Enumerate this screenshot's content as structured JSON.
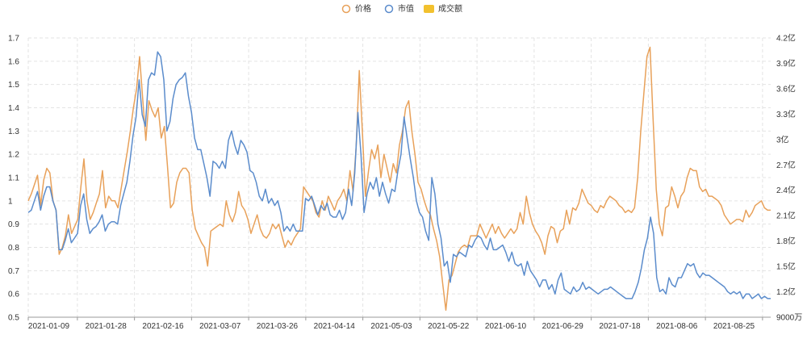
{
  "chart_data": {
    "type": "line",
    "title": "",
    "legend": [
      {
        "name": "价格",
        "color": "#e8a15a",
        "icon": "circle-outline"
      },
      {
        "name": "市值",
        "color": "#5b8ccc",
        "icon": "circle-outline"
      },
      {
        "name": "成交额",
        "color": "#f2c12e",
        "icon": "filled-rect"
      }
    ],
    "legend_position": "top-center",
    "x_labels": [
      "2021-01-09",
      "2021-01-28",
      "2021-02-16",
      "2021-03-07",
      "2021-03-26",
      "2021-04-14",
      "2021-05-03",
      "2021-05-22",
      "2021-06-10",
      "2021-06-29",
      "2021-07-18",
      "2021-08-06",
      "2021-08-25"
    ],
    "y_left": {
      "range": [
        0.5,
        1.7
      ],
      "ticks": [
        0.5,
        0.6,
        0.7,
        0.8,
        0.9,
        1,
        1.1,
        1.2,
        1.3,
        1.4,
        1.5,
        1.6,
        1.7
      ],
      "tick_labels": [
        "0.5",
        "0.6",
        "0.7",
        "0.8",
        "0.9",
        "1",
        "1.1",
        "1.2",
        "1.3",
        "1.4",
        "1.5",
        "1.6",
        "1.7"
      ]
    },
    "y_right": {
      "range": [
        0.9,
        4.2
      ],
      "ticks": [
        0.9,
        1.2,
        1.5,
        1.8,
        2.1,
        2.4,
        2.7,
        3.0,
        3.3,
        3.6,
        3.9,
        4.2
      ],
      "tick_labels": [
        "9000万",
        "1.2亿",
        "1.5亿",
        "1.8亿",
        "2.1亿",
        "2.4亿",
        "2.7亿",
        "3亿",
        "3.3亿",
        "3.6亿",
        "3.9亿",
        "4.2亿"
      ],
      "unit": "亿"
    },
    "grid": true,
    "series": [
      {
        "name": "价格",
        "axis": "left",
        "color": "#e8a15a",
        "values": [
          1.0,
          1.03,
          1.07,
          1.11,
          0.98,
          1.09,
          1.14,
          1.12,
          1.0,
          0.96,
          0.77,
          0.8,
          0.85,
          0.94,
          0.86,
          0.89,
          0.92,
          1.06,
          1.18,
          1.0,
          0.92,
          0.95,
          0.99,
          1.03,
          1.13,
          0.97,
          1.02,
          1.0,
          1.0,
          0.97,
          1.05,
          1.13,
          1.21,
          1.3,
          1.4,
          1.48,
          1.62,
          1.44,
          1.26,
          1.43,
          1.39,
          1.36,
          1.4,
          1.27,
          1.32,
          1.15,
          0.97,
          0.99,
          1.08,
          1.12,
          1.14,
          1.14,
          1.12,
          0.96,
          0.88,
          0.85,
          0.82,
          0.8,
          0.72,
          0.87,
          0.88,
          0.89,
          0.9,
          0.89,
          1.0,
          0.94,
          0.91,
          0.95,
          1.04,
          0.98,
          0.96,
          0.92,
          0.86,
          0.9,
          0.94,
          0.88,
          0.85,
          0.84,
          0.86,
          0.9,
          0.88,
          0.9,
          0.85,
          0.8,
          0.83,
          0.81,
          0.84,
          0.86,
          0.88,
          1.06,
          1.04,
          1.02,
          1.0,
          0.95,
          0.93,
          1.0,
          0.96,
          1.02,
          0.99,
          0.96,
          1.0,
          1.02,
          1.05,
          1.0,
          1.13,
          1.04,
          1.23,
          1.56,
          1.3,
          1.02,
          1.13,
          1.22,
          1.18,
          1.24,
          1.1,
          1.2,
          1.14,
          1.08,
          1.16,
          1.12,
          1.24,
          1.3,
          1.4,
          1.43,
          1.3,
          1.2,
          1.08,
          1.05,
          1.0,
          0.96,
          0.94,
          0.88,
          0.83,
          0.76,
          0.64,
          0.53,
          0.66,
          0.68,
          0.73,
          0.78,
          0.8,
          0.81,
          0.8,
          0.85,
          0.85,
          0.85,
          0.9,
          0.87,
          0.84,
          0.87,
          0.9,
          0.86,
          0.89,
          0.86,
          0.84,
          0.86,
          0.88,
          0.86,
          0.88,
          0.95,
          0.9,
          1.02,
          0.95,
          0.9,
          0.87,
          0.85,
          0.82,
          0.77,
          0.85,
          0.89,
          0.88,
          0.82,
          0.87,
          0.88,
          0.96,
          0.9,
          0.97,
          0.96,
          0.99,
          1.05,
          1.02,
          0.99,
          0.98,
          0.96,
          0.95,
          0.98,
          0.97,
          1.0,
          1.02,
          1.01,
          1.0,
          0.98,
          0.97,
          0.95,
          0.96,
          0.95,
          0.97,
          1.1,
          1.3,
          1.46,
          1.62,
          1.66,
          1.35,
          1.05,
          0.9,
          0.85,
          0.97,
          0.98,
          1.06,
          1.02,
          0.97,
          1.02,
          1.04,
          1.1,
          1.14,
          1.13,
          1.13,
          1.06,
          1.04,
          1.05,
          1.02,
          1.02,
          1.01,
          1.0,
          0.98,
          0.94,
          0.92,
          0.9,
          0.91,
          0.92,
          0.92,
          0.91,
          0.96,
          0.93,
          0.95,
          0.98,
          0.99,
          1.0,
          0.97,
          0.96,
          0.96
        ]
      },
      {
        "name": "市值",
        "axis": "left",
        "color": "#5b8ccc",
        "values": [
          0.95,
          0.96,
          1.0,
          1.04,
          0.96,
          1.02,
          1.06,
          1.06,
          1.0,
          0.96,
          0.79,
          0.79,
          0.83,
          0.88,
          0.82,
          0.84,
          0.86,
          0.98,
          1.03,
          0.92,
          0.86,
          0.88,
          0.89,
          0.91,
          0.94,
          0.87,
          0.9,
          0.91,
          0.91,
          0.9,
          0.98,
          1.03,
          1.08,
          1.17,
          1.28,
          1.36,
          1.52,
          1.37,
          1.32,
          1.52,
          1.55,
          1.54,
          1.64,
          1.62,
          1.52,
          1.3,
          1.34,
          1.44,
          1.5,
          1.52,
          1.53,
          1.55,
          1.45,
          1.38,
          1.27,
          1.22,
          1.22,
          1.16,
          1.1,
          1.02,
          1.17,
          1.16,
          1.14,
          1.17,
          1.14,
          1.26,
          1.3,
          1.24,
          1.2,
          1.26,
          1.24,
          1.21,
          1.13,
          1.12,
          1.08,
          1.02,
          1.0,
          1.05,
          0.99,
          1.01,
          0.98,
          1.0,
          0.95,
          0.87,
          0.89,
          0.87,
          0.9,
          0.87,
          0.87,
          0.87,
          1.01,
          1.0,
          1.02,
          0.98,
          0.94,
          0.98,
          0.96,
          0.99,
          0.94,
          0.93,
          0.93,
          0.96,
          0.92,
          0.95,
          1.05,
          0.98,
          1.12,
          1.38,
          1.2,
          0.95,
          1.03,
          1.08,
          1.05,
          1.1,
          1.02,
          1.08,
          1.03,
          0.99,
          1.05,
          1.04,
          1.13,
          1.2,
          1.36,
          1.27,
          1.18,
          1.1,
          1.0,
          0.95,
          0.93,
          0.87,
          0.83,
          1.1,
          1.03,
          0.9,
          0.84,
          0.72,
          0.74,
          0.65,
          0.77,
          0.76,
          0.78,
          0.77,
          0.76,
          0.81,
          0.8,
          0.83,
          0.85,
          0.84,
          0.81,
          0.79,
          0.84,
          0.79,
          0.79,
          0.8,
          0.81,
          0.78,
          0.74,
          0.78,
          0.73,
          0.72,
          0.73,
          0.68,
          0.74,
          0.7,
          0.68,
          0.66,
          0.63,
          0.66,
          0.66,
          0.62,
          0.64,
          0.6,
          0.66,
          0.69,
          0.62,
          0.61,
          0.6,
          0.63,
          0.61,
          0.62,
          0.65,
          0.62,
          0.63,
          0.62,
          0.61,
          0.6,
          0.61,
          0.62,
          0.62,
          0.63,
          0.62,
          0.61,
          0.6,
          0.59,
          0.58,
          0.58,
          0.58,
          0.61,
          0.65,
          0.71,
          0.79,
          0.84,
          0.93,
          0.86,
          0.67,
          0.61,
          0.62,
          0.6,
          0.67,
          0.64,
          0.63,
          0.67,
          0.67,
          0.7,
          0.73,
          0.72,
          0.73,
          0.69,
          0.67,
          0.69,
          0.68,
          0.68,
          0.67,
          0.66,
          0.65,
          0.64,
          0.63,
          0.61,
          0.6,
          0.61,
          0.6,
          0.61,
          0.58,
          0.6,
          0.6,
          0.58,
          0.59,
          0.6,
          0.58,
          0.59,
          0.58,
          0.58
        ]
      }
    ]
  }
}
